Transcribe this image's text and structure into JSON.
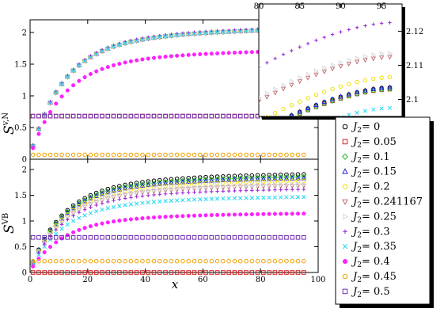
{
  "chart_data": [
    {
      "id": "top",
      "type": "scatter",
      "ylabel": "S",
      "ylabel_sup": "v,N",
      "xlim": [
        0,
        100
      ],
      "ylim": [
        0,
        2.2
      ],
      "yticks": [
        "0",
        "0.5",
        "1",
        "1.5",
        "2"
      ],
      "series_values": [
        2.1,
        2.1,
        2.1,
        2.1,
        2.1,
        2.1,
        2.1,
        2.12,
        2.1,
        1.75,
        0.07,
        0.68
      ]
    },
    {
      "id": "bottom",
      "type": "scatter",
      "xlabel": "x",
      "ylabel": "S",
      "ylabel_sup": "VB",
      "xlim": [
        0,
        100
      ],
      "ylim": [
        0,
        2.2
      ],
      "xticks": [
        "0",
        "20",
        "40",
        "60",
        "80",
        "100"
      ],
      "yticks": [
        "0",
        "0.5",
        "1",
        "1.5",
        "2"
      ],
      "series_values": [
        1.95,
        1.92,
        1.9,
        1.87,
        1.82,
        1.73,
        1.75,
        1.65,
        1.5,
        1.17,
        0.22,
        0.68
      ]
    },
    {
      "id": "inset",
      "type": "scatter",
      "xlim": [
        80,
        97.5
      ],
      "ylim": [
        2.095,
        2.128
      ],
      "xticks": [
        "80",
        "85",
        "90",
        "95"
      ],
      "yticks": [
        "2.1",
        "2.11",
        "2.12"
      ],
      "series_values": [
        2.1055,
        2.105,
        2.105,
        2.1055,
        2.1085,
        2.1145,
        2.1155,
        2.1245,
        2.0995
      ]
    }
  ],
  "legend": {
    "label_prefix": "J",
    "label_sub": "2",
    "entries": [
      {
        "value": "0",
        "color": "#000000",
        "marker": "circle"
      },
      {
        "value": "0.05",
        "color": "#d32020",
        "marker": "square"
      },
      {
        "value": "0.1",
        "color": "#22bb22",
        "marker": "diamond"
      },
      {
        "value": "0.15",
        "color": "#2020e0",
        "marker": "triangle-up"
      },
      {
        "value": "0.2",
        "color": "#f0e000",
        "marker": "circle"
      },
      {
        "value": "0.241167",
        "color": "#c07070",
        "marker": "triangle-down"
      },
      {
        "value": "0.25",
        "color": "#d8d8d8",
        "marker": "triangle-right"
      },
      {
        "value": "0.3",
        "color": "#9a20d8",
        "marker": "plus"
      },
      {
        "value": "0.35",
        "color": "#20d8f0",
        "marker": "cross"
      },
      {
        "value": "0.4",
        "color": "#ff20ff",
        "marker": "star"
      },
      {
        "value": "0.45",
        "color": "#f0a000",
        "marker": "circle"
      },
      {
        "value": "0.5",
        "color": "#7030b0",
        "marker": "square"
      }
    ]
  }
}
